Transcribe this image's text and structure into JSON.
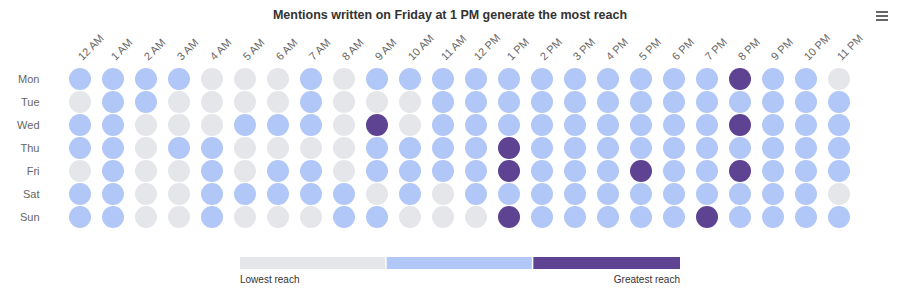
{
  "chart_data": {
    "type": "heatmap",
    "title": "Mentions written on Friday at 1 PM generate the most reach",
    "x": [
      "12 AM",
      "1 AM",
      "2 AM",
      "3 AM",
      "4 AM",
      "5 AM",
      "6 AM",
      "7 AM",
      "8 AM",
      "9 AM",
      "10 AM",
      "11 AM",
      "12 PM",
      "1 PM",
      "2 PM",
      "3 PM",
      "4 PM",
      "5 PM",
      "6 PM",
      "7 PM",
      "8 PM",
      "9 PM",
      "10 PM",
      "11 PM"
    ],
    "y": [
      "Mon",
      "Tue",
      "Wed",
      "Thu",
      "Fri",
      "Sat",
      "Sun"
    ],
    "cells": [
      [
        1,
        1,
        1,
        1,
        0,
        0,
        0,
        1,
        0,
        1,
        1,
        1,
        1,
        1,
        1,
        1,
        1,
        1,
        1,
        1,
        2,
        1,
        1,
        0
      ],
      [
        0,
        1,
        1,
        0,
        0,
        0,
        0,
        1,
        0,
        0,
        0,
        1,
        1,
        1,
        1,
        1,
        1,
        1,
        1,
        1,
        1,
        1,
        1,
        1
      ],
      [
        1,
        1,
        0,
        0,
        0,
        1,
        1,
        1,
        0,
        2,
        0,
        1,
        1,
        1,
        1,
        1,
        1,
        1,
        1,
        1,
        2,
        1,
        1,
        1
      ],
      [
        1,
        1,
        0,
        1,
        1,
        0,
        0,
        0,
        0,
        1,
        1,
        1,
        1,
        2,
        1,
        1,
        1,
        1,
        1,
        1,
        1,
        1,
        1,
        1
      ],
      [
        0,
        1,
        0,
        0,
        1,
        0,
        1,
        1,
        0,
        1,
        1,
        1,
        1,
        2,
        1,
        1,
        1,
        2,
        1,
        1,
        2,
        1,
        1,
        1
      ],
      [
        1,
        1,
        0,
        0,
        1,
        1,
        1,
        1,
        1,
        0,
        1,
        0,
        1,
        1,
        1,
        1,
        1,
        1,
        1,
        1,
        1,
        1,
        1,
        0
      ],
      [
        1,
        1,
        0,
        0,
        1,
        0,
        0,
        0,
        1,
        1,
        0,
        0,
        0,
        2,
        1,
        1,
        1,
        1,
        1,
        2,
        1,
        1,
        1,
        1
      ]
    ],
    "level_colors": [
      "#e4e6ea",
      "#b1c7f7",
      "#5e4392"
    ],
    "legend_labels": [
      "Lowest reach",
      "Greatest reach"
    ],
    "marker": "circle"
  }
}
